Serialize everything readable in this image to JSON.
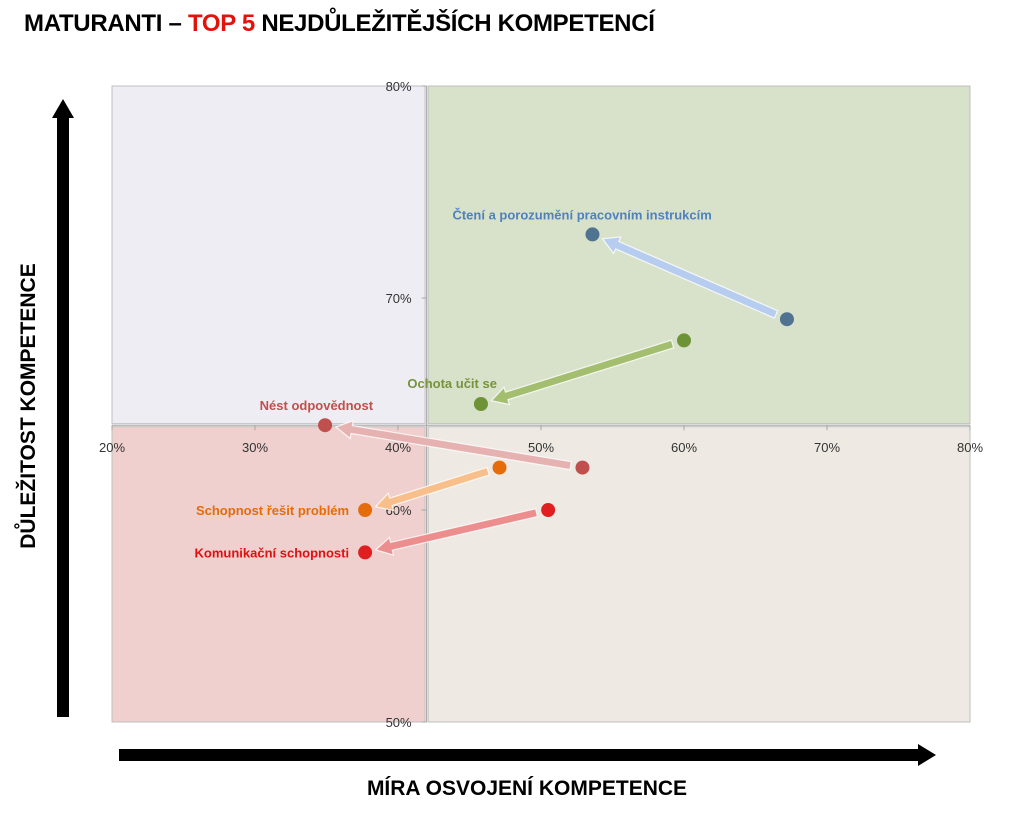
{
  "title": {
    "prefix": "MATURANTI – ",
    "highlight": "TOP 5",
    "suffix": " NEJDŮLEŽITĚJŠÍCH KOMPETENCÍ",
    "highlight_color": "#e3120b"
  },
  "chart_data": {
    "type": "scatter",
    "xlabel": "MÍRA OSVOJENÍ KOMPETENCE",
    "ylabel": "DŮLEŽITOST KOMPETENCE",
    "xlim": [
      0.2,
      0.8
    ],
    "ylim": [
      0.5,
      0.8
    ],
    "x_ticks": [
      {
        "value": 0.2,
        "label": "20%"
      },
      {
        "value": 0.3,
        "label": "30%"
      },
      {
        "value": 0.4,
        "label": "40%"
      },
      {
        "value": 0.5,
        "label": "50%"
      },
      {
        "value": 0.6,
        "label": "60%"
      },
      {
        "value": 0.7,
        "label": "70%"
      },
      {
        "value": 0.8,
        "label": "80%"
      }
    ],
    "y_ticks": [
      {
        "value": 0.5,
        "label": "50%"
      },
      {
        "value": 0.6,
        "label": "60%"
      },
      {
        "value": 0.7,
        "label": "70%"
      },
      {
        "value": 0.8,
        "label": "80%"
      }
    ],
    "x_axis_at_y": 0.64,
    "y_axis_at_x": 0.42,
    "quadrant_split": {
      "x": 0.42,
      "y": 0.64
    },
    "quadrant_colors": {
      "top_left": "#efedf4",
      "top_right": "#d8e2cb",
      "bottom_left": "#efd0ce",
      "bottom_right": "#eeeae3"
    },
    "series": [
      {
        "name": "Čtení a porozumění pracovním instrukcím",
        "from": [
          0.672,
          0.69
        ],
        "to": [
          0.536,
          0.73
        ],
        "color": "#4f7390",
        "label_color": "#4f81bd",
        "arrow_color": "#b6cdf0"
      },
      {
        "name": "Ochota učit se",
        "from": [
          0.6,
          0.68
        ],
        "to": [
          0.458,
          0.65
        ],
        "color": "#6e9236",
        "label_color": "#77933c",
        "arrow_color": "#a4be70"
      },
      {
        "name": "Nést odpovědnost",
        "from": [
          0.529,
          0.62
        ],
        "to": [
          0.349,
          0.64
        ],
        "color": "#c0504d",
        "label_color": "#c0504d",
        "arrow_color": "#e6b1b1"
      },
      {
        "name": "Schopnost řešit problém",
        "from": [
          0.471,
          0.62
        ],
        "to": [
          0.377,
          0.6
        ],
        "color": "#e46c0a",
        "label_color": "#e46c0a",
        "arrow_color": "#f9bf8b"
      },
      {
        "name": "Komunikační schopnosti",
        "from": [
          0.505,
          0.6
        ],
        "to": [
          0.377,
          0.58
        ],
        "color": "#e02020",
        "label_color": "#e01010",
        "arrow_color": "#ec8e8e"
      }
    ]
  }
}
